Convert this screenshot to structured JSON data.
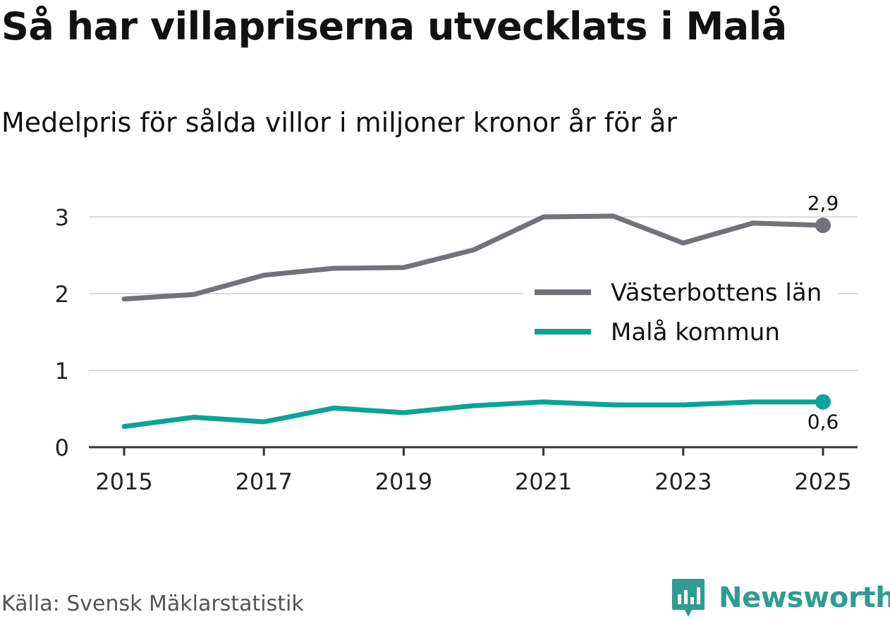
{
  "chart_data": {
    "type": "line",
    "title": "Så har villapriserna utvecklats i Malå",
    "subtitle": "Medelpris för sålda villor i miljoner kronor år för år",
    "x": [
      2015,
      2016,
      2017,
      2018,
      2019,
      2020,
      2021,
      2022,
      2023,
      2024,
      2025
    ],
    "xticks": [
      "2015",
      "2017",
      "2019",
      "2021",
      "2023",
      "2025"
    ],
    "yticks": [
      "0",
      "1",
      "2",
      "3"
    ],
    "ylim": [
      0,
      3
    ],
    "grid": true,
    "legend_position": "right",
    "series": [
      {
        "name": "Västerbottens län",
        "color": "#737278",
        "values": [
          1.93,
          1.99,
          2.24,
          2.33,
          2.34,
          2.57,
          3.0,
          3.01,
          2.66,
          2.92,
          2.89
        ],
        "end_label": "2,9"
      },
      {
        "name": "Malå kommun",
        "color": "#0aa39a",
        "values": [
          0.27,
          0.39,
          0.33,
          0.51,
          0.45,
          0.54,
          0.59,
          0.55,
          0.55,
          0.59,
          0.59
        ],
        "end_label": "0,6"
      }
    ]
  },
  "footer": {
    "source": "Källa: Svensk Mäklarstatistik",
    "brand": "Newsworthy",
    "brand_color": "#2f9c92"
  }
}
